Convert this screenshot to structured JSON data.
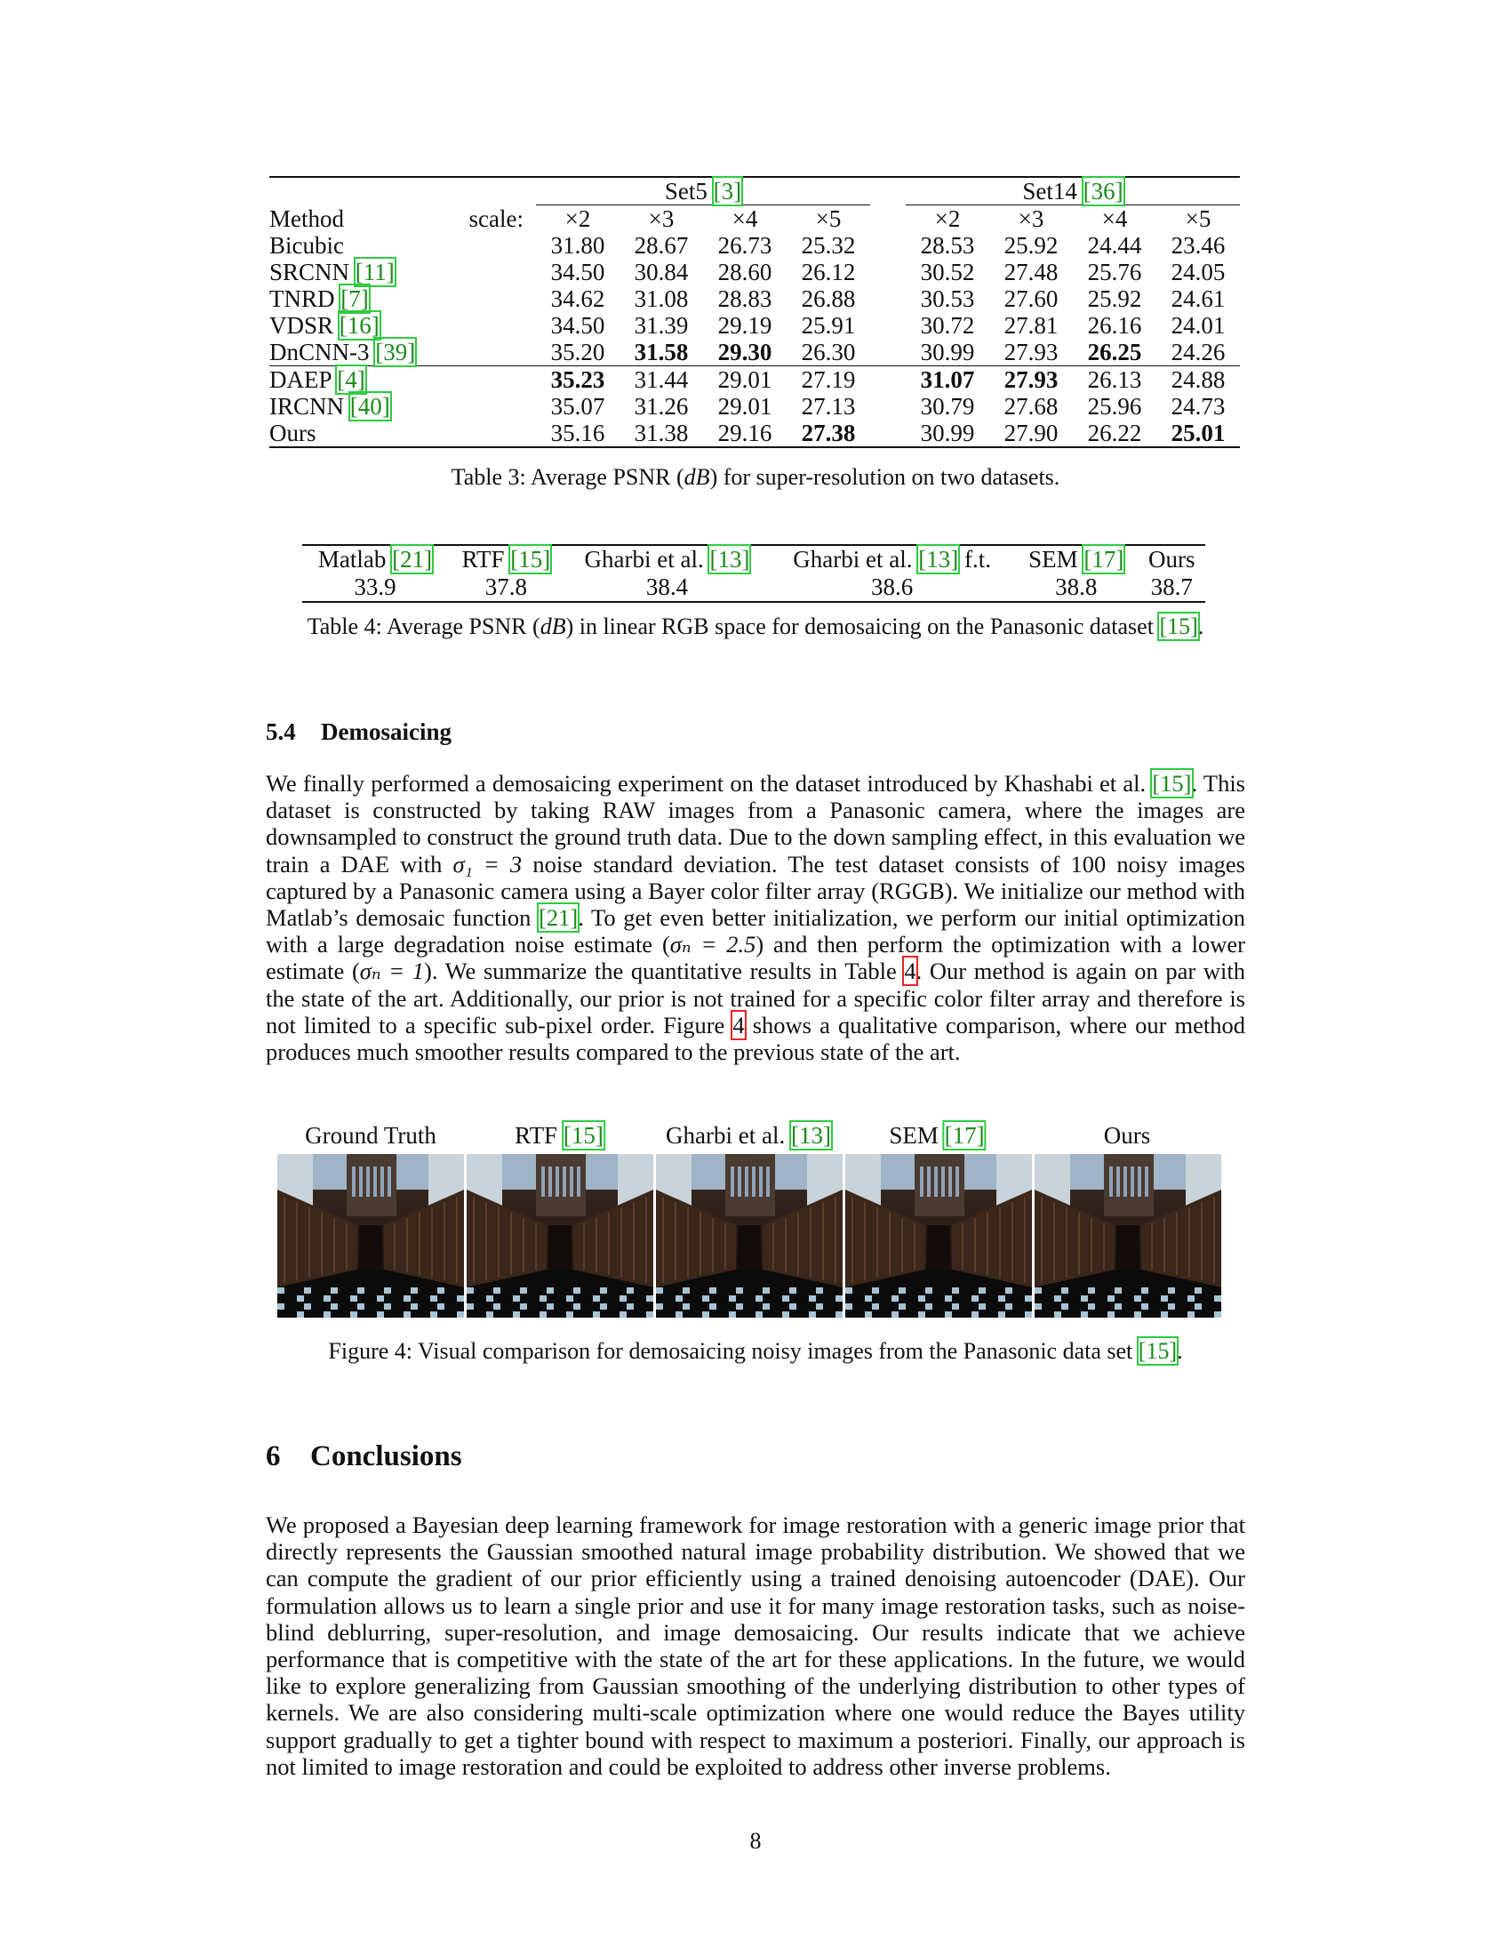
{
  "table3": {
    "set5_label": "Set5",
    "set5_cite": "[3]",
    "set14_label": "Set14",
    "set14_cite": "[36]",
    "method_header": "Method",
    "scale_header": "scale:",
    "scales": [
      "×2",
      "×3",
      "×4",
      "×5"
    ],
    "rows": [
      {
        "name": "Bicubic",
        "cite": "",
        "set5": [
          "31.80",
          "28.67",
          "26.73",
          "25.32"
        ],
        "set14": [
          "28.53",
          "25.92",
          "24.44",
          "23.46"
        ]
      },
      {
        "name": "SRCNN",
        "cite": "[11]",
        "set5": [
          "34.50",
          "30.84",
          "28.60",
          "26.12"
        ],
        "set14": [
          "30.52",
          "27.48",
          "25.76",
          "24.05"
        ]
      },
      {
        "name": "TNRD",
        "cite": "[7]",
        "set5": [
          "34.62",
          "31.08",
          "28.83",
          "26.88"
        ],
        "set14": [
          "30.53",
          "27.60",
          "25.92",
          "24.61"
        ]
      },
      {
        "name": "VDSR",
        "cite": "[16]",
        "set5": [
          "34.50",
          "31.39",
          "29.19",
          "25.91"
        ],
        "set14": [
          "30.72",
          "27.81",
          "26.16",
          "24.01"
        ]
      },
      {
        "name": "DnCNN-3",
        "cite": "[39]",
        "set5": [
          "35.20",
          "31.58",
          "29.30",
          "26.30"
        ],
        "set14": [
          "30.99",
          "27.93",
          "26.25",
          "24.26"
        ]
      },
      {
        "name": "DAEP",
        "cite": "[4]",
        "set5": [
          "35.23",
          "31.44",
          "29.01",
          "27.19"
        ],
        "set14": [
          "31.07",
          "27.93",
          "26.13",
          "24.88"
        ]
      },
      {
        "name": "IRCNN",
        "cite": "[40]",
        "set5": [
          "35.07",
          "31.26",
          "29.01",
          "27.13"
        ],
        "set14": [
          "30.79",
          "27.68",
          "25.96",
          "24.73"
        ]
      },
      {
        "name": "Ours",
        "cite": "",
        "set5": [
          "35.16",
          "31.38",
          "29.16",
          "27.38"
        ],
        "set14": [
          "30.99",
          "27.90",
          "26.22",
          "25.01"
        ]
      }
    ],
    "caption": "Table 3: Average PSNR (dB) for super-resolution on two datasets."
  },
  "table4": {
    "columns": [
      {
        "name": "Matlab",
        "cite": "[21]",
        "suffix": "",
        "value": "33.9"
      },
      {
        "name": "RTF",
        "cite": "[15]",
        "suffix": "",
        "value": "37.8"
      },
      {
        "name": "Gharbi et al.",
        "cite": "[13]",
        "suffix": "",
        "value": "38.4"
      },
      {
        "name": "Gharbi et al.",
        "cite": "[13]",
        "suffix": " f.t.",
        "value": "38.6"
      },
      {
        "name": "SEM",
        "cite": "[17]",
        "suffix": "",
        "value": "38.8"
      },
      {
        "name": "Ours",
        "cite": "",
        "suffix": "",
        "value": "38.7"
      }
    ],
    "caption_pre": "Table 4: Average PSNR (",
    "caption_unit": "dB",
    "caption_post": ") in linear RGB space for demosaicing on the Panasonic dataset ",
    "caption_cite": "[15]",
    "caption_end": "."
  },
  "section54": {
    "number": "5.4",
    "title": "Demosaicing"
  },
  "para1": {
    "s1": "We finally performed a demosaicing experiment on the dataset introduced by Khashabi et al. ",
    "c1": "[15]",
    "s2": ". This dataset is constructed by taking RAW images from a Panasonic camera, where the images are downsampled to construct the ground truth data. Due to the down sampling effect, in this evaluation we train a DAE with ",
    "m1": "σ₁ = 3",
    "s3": " noise standard deviation. The test dataset consists of 100 noisy images captured by a Panasonic camera using a Bayer color filter array (RGGB). We initialize our method with Matlab’s demosaic function ",
    "c2": "[21]",
    "s4": ". To get even better initialization, we perform our initial optimization with a large degradation noise estimate (",
    "m2": "σₙ = 2.5",
    "s5": ") and then perform the optimization with a lower estimate (",
    "m3": "σₙ = 1",
    "s6": "). We summarize the quantitative results in Table ",
    "r1": "4",
    "s7": ". Our method is again on par with the state of the art. Additionally, our prior is not trained for a specific color filter array and therefore is not limited to a specific sub-pixel order. Figure ",
    "r2": "4",
    "s8": " shows a qualitative comparison, where our method produces much smoother results compared to the previous state of the art."
  },
  "figure4": {
    "labels": [
      {
        "name": "Ground Truth",
        "cite": ""
      },
      {
        "name": "RTF",
        "cite": "[15]"
      },
      {
        "name": "Gharbi et al.",
        "cite": "[13]"
      },
      {
        "name": "SEM",
        "cite": "[17]"
      },
      {
        "name": "Ours",
        "cite": ""
      }
    ],
    "caption_pre": "Figure 4:   Visual comparison for demosaicing noisy images from the Panasonic data set ",
    "caption_cite": "[15]",
    "caption_end": "."
  },
  "section6": {
    "number": "6",
    "title": "Conclusions"
  },
  "para2": "We proposed a Bayesian deep learning framework for image restoration with a generic image prior that directly represents the Gaussian smoothed natural image probability distribution. We showed that we can compute the gradient of our prior efficiently using a trained denoising autoencoder (DAE). Our formulation allows us to learn a single prior and use it for many image restoration tasks, such as noise-blind deblurring, super-resolution, and image demosaicing. Our results indicate that we achieve performance that is competitive with the state of the art for these applications. In the future, we would like to explore generalizing from Gaussian smoothing of the underlying distribution to other types of kernels. We are also considering multi-scale optimization where one would reduce the Bayes utility support gradually to get a tighter bound with respect to maximum a posteriori. Finally, our approach is not limited to image restoration and could be exploited to address other inverse problems.",
  "page_number": "8",
  "colors": {
    "cite_green": "#1a8a1a",
    "ref_red": "#c41a1a"
  }
}
